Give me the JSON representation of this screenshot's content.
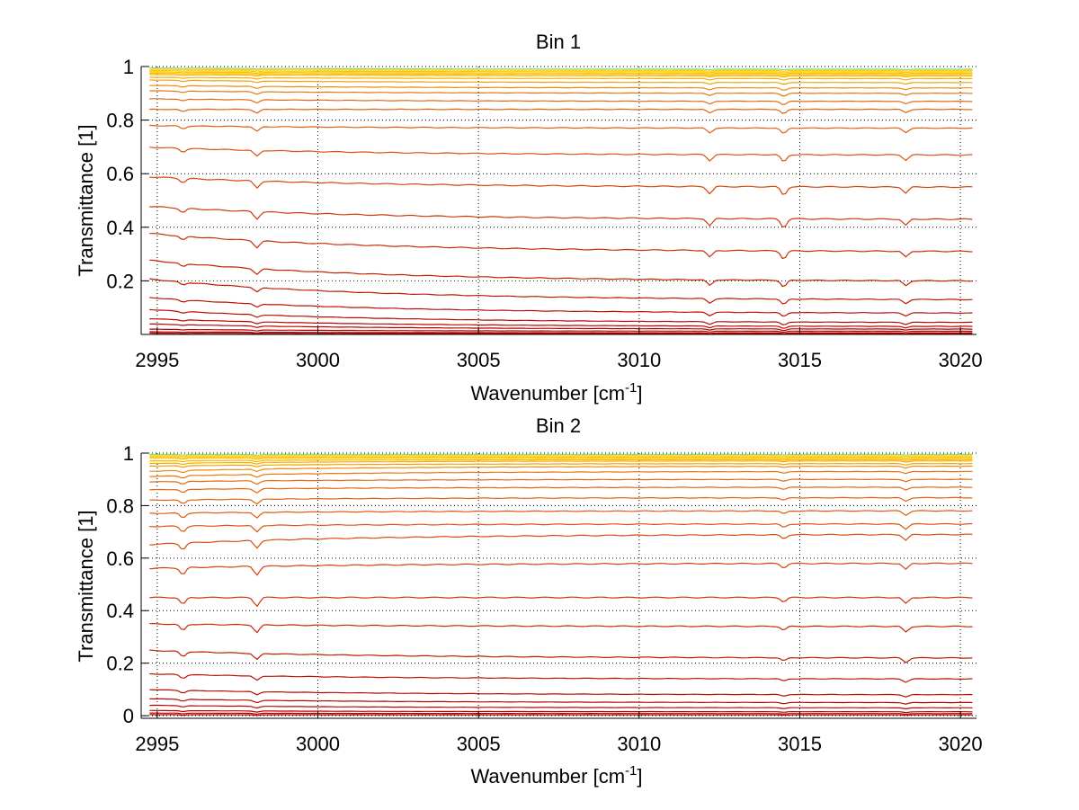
{
  "colors": {
    "background": "#ffffff",
    "axes": "#000000",
    "grid": "#000000",
    "line_low": "#b40000",
    "line_mid": "#e86a10",
    "line_high": "#ffd000",
    "line_top": "#40e0c0"
  },
  "chart_data": [
    {
      "type": "line",
      "title": "Bin 1",
      "xlabel": "Wavenumber [cm",
      "xlabel_sup": "-1",
      "xlabel_close": "]",
      "ylabel": "Transmittance [1]",
      "xlim": [
        2994.5,
        3020.5
      ],
      "ylim": [
        0,
        1
      ],
      "xticks": [
        2995,
        3000,
        3005,
        3010,
        3015,
        3020
      ],
      "xtick_labels": [
        "2995",
        "3000",
        "3005",
        "3010",
        "3015",
        "3020"
      ],
      "yticks": [
        0.2,
        0.4,
        0.6,
        0.8,
        1
      ],
      "ytick_labels": [
        "0.2",
        "0.4",
        "0.6",
        "0.8",
        "1"
      ],
      "grid": true,
      "absorption_lines": [
        {
          "x": 2995.8,
          "depth": 0.15
        },
        {
          "x": 2998.1,
          "depth": 0.25
        },
        {
          "x": 3012.2,
          "depth": 0.25
        },
        {
          "x": 3014.5,
          "depth": 0.3
        },
        {
          "x": 3018.3,
          "depth": 0.22
        }
      ],
      "series_levels": [
        0.995,
        0.99,
        0.985,
        0.98,
        0.975,
        0.97,
        0.96,
        0.95,
        0.93,
        0.91,
        0.88,
        0.84,
        0.78,
        0.7,
        0.59,
        0.48,
        0.38,
        0.28,
        0.21,
        0.14,
        0.095,
        0.06,
        0.04,
        0.02,
        0.01,
        0.005
      ],
      "series_right_levels": [
        0.99,
        0.985,
        0.98,
        0.975,
        0.97,
        0.965,
        0.955,
        0.94,
        0.92,
        0.9,
        0.87,
        0.84,
        0.77,
        0.67,
        0.55,
        0.43,
        0.31,
        0.2,
        0.13,
        0.08,
        0.045,
        0.03,
        0.02,
        0.012,
        0.006,
        0.003
      ]
    },
    {
      "type": "line",
      "title": "Bin 2",
      "xlabel": "Wavenumber [cm",
      "xlabel_sup": "-1",
      "xlabel_close": "]",
      "ylabel": "Transmittance [1]",
      "xlim": [
        2994.5,
        3020.5
      ],
      "ylim": [
        -0.01,
        1
      ],
      "xticks": [
        2995,
        3000,
        3005,
        3010,
        3015,
        3020
      ],
      "xtick_labels": [
        "2995",
        "3000",
        "3005",
        "3010",
        "3015",
        "3020"
      ],
      "yticks": [
        0,
        0.2,
        0.4,
        0.6,
        0.8,
        1
      ],
      "ytick_labels": [
        "0",
        "0.2",
        "0.4",
        "0.6",
        "0.8",
        "1"
      ],
      "grid": true,
      "absorption_lines": [
        {
          "x": 2995.8,
          "depth": 0.25
        },
        {
          "x": 2998.1,
          "depth": 0.3
        },
        {
          "x": 3014.5,
          "depth": 0.15
        },
        {
          "x": 3018.3,
          "depth": 0.22
        }
      ],
      "series_levels": [
        0.995,
        0.99,
        0.985,
        0.98,
        0.97,
        0.96,
        0.95,
        0.93,
        0.91,
        0.89,
        0.86,
        0.82,
        0.77,
        0.72,
        0.65,
        0.56,
        0.45,
        0.35,
        0.25,
        0.16,
        0.1,
        0.065,
        0.04,
        0.02,
        0.01,
        0.004
      ],
      "series_right_levels": [
        0.995,
        0.99,
        0.985,
        0.98,
        0.975,
        0.97,
        0.96,
        0.95,
        0.93,
        0.9,
        0.87,
        0.83,
        0.78,
        0.73,
        0.69,
        0.58,
        0.45,
        0.34,
        0.22,
        0.14,
        0.08,
        0.05,
        0.03,
        0.015,
        0.008,
        0.003
      ]
    }
  ]
}
